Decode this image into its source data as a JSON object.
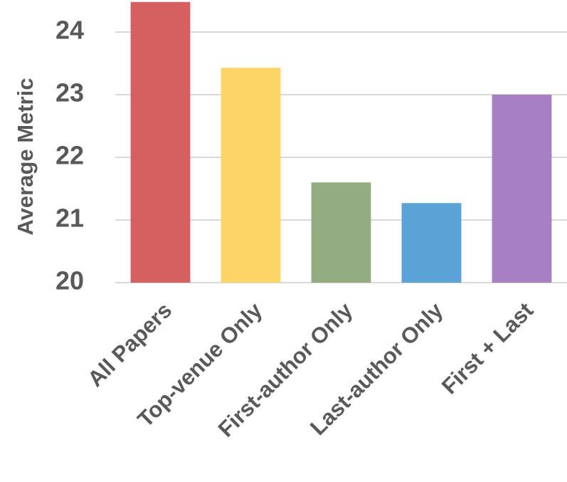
{
  "chart_data": {
    "type": "bar",
    "y_label": "Average Metric",
    "categories": [
      "All Papers",
      "Top-venue Only",
      "First-author Only",
      "Last-author Only",
      "First + Last"
    ],
    "values": [
      24.48,
      23.43,
      21.6,
      21.27,
      23.0
    ],
    "colors": [
      "#d65f60",
      "#fcd566",
      "#93ad80",
      "#5ba2d6",
      "#a680c3"
    ],
    "ylim": [
      20,
      24.5
    ],
    "yticks": [
      20,
      21,
      22,
      23,
      24
    ],
    "grid": true
  }
}
